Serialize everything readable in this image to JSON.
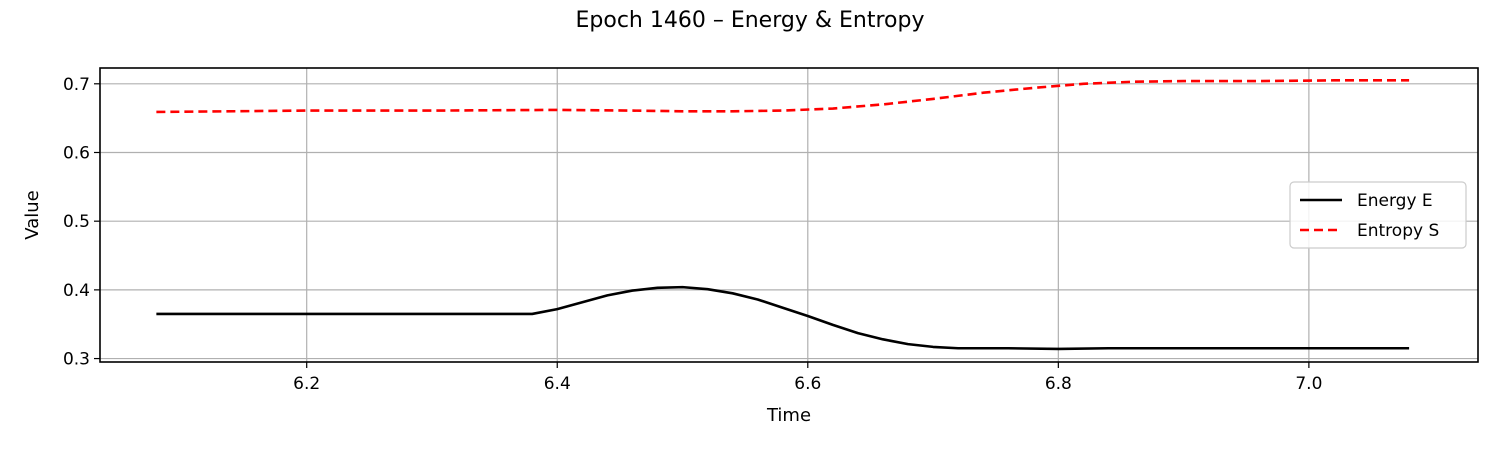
{
  "chart_data": {
    "type": "line",
    "title": "Epoch 1460 – Energy & Entropy",
    "xlabel": "Time",
    "ylabel": "Value",
    "xlim": [
      6.035,
      7.135
    ],
    "ylim": [
      0.295,
      0.723
    ],
    "xticks": [
      6.2,
      6.4,
      6.6,
      6.8,
      7.0
    ],
    "xtick_labels": [
      "6.2",
      "6.4",
      "6.6",
      "6.8",
      "7.0"
    ],
    "yticks": [
      0.3,
      0.4,
      0.5,
      0.6,
      0.7
    ],
    "ytick_labels": [
      "0.3",
      "0.4",
      "0.5",
      "0.6",
      "0.7"
    ],
    "grid": true,
    "legend_position": "center-right",
    "series": [
      {
        "name": "Energy E",
        "color": "#000000",
        "style": "solid",
        "x": [
          6.08,
          6.2,
          6.3,
          6.38,
          6.4,
          6.42,
          6.44,
          6.46,
          6.48,
          6.5,
          6.52,
          6.54,
          6.56,
          6.58,
          6.6,
          6.62,
          6.64,
          6.66,
          6.68,
          6.7,
          6.72,
          6.76,
          6.8,
          6.84,
          6.9,
          6.96,
          7.02,
          7.08
        ],
        "y": [
          0.365,
          0.365,
          0.365,
          0.365,
          0.372,
          0.382,
          0.392,
          0.399,
          0.403,
          0.404,
          0.401,
          0.395,
          0.386,
          0.374,
          0.362,
          0.349,
          0.337,
          0.328,
          0.321,
          0.317,
          0.315,
          0.315,
          0.314,
          0.315,
          0.315,
          0.315,
          0.315,
          0.315
        ]
      },
      {
        "name": "Entropy S",
        "color": "#ff0000",
        "style": "dashed",
        "x": [
          6.08,
          6.2,
          6.3,
          6.4,
          6.46,
          6.5,
          6.54,
          6.58,
          6.62,
          6.66,
          6.7,
          6.74,
          6.78,
          6.82,
          6.86,
          6.9,
          6.96,
          7.02,
          7.08
        ],
        "y": [
          0.659,
          0.661,
          0.661,
          0.662,
          0.661,
          0.66,
          0.66,
          0.661,
          0.664,
          0.67,
          0.678,
          0.687,
          0.694,
          0.7,
          0.703,
          0.704,
          0.704,
          0.705,
          0.705
        ]
      }
    ]
  }
}
